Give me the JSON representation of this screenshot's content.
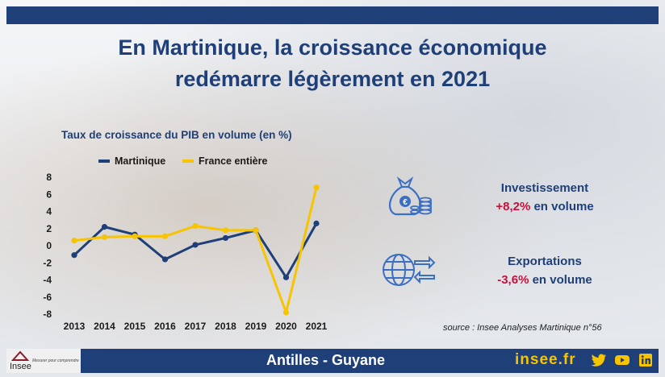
{
  "title_line1": "En Martinique, la croissance économique",
  "title_line2": "redémarre légèrement en 2021",
  "colors": {
    "navy": "#1f3f78",
    "yellow": "#f6c400",
    "red": "#c8103d"
  },
  "chart_data": {
    "type": "line",
    "title": "Taux de croissance du PIB en volume (en %)",
    "x": [
      "2013",
      "2014",
      "2015",
      "2016",
      "2017",
      "2018",
      "2019",
      "2020",
      "2021"
    ],
    "series": [
      {
        "name": "Martinique",
        "color": "#1f3f78",
        "values": [
          -1.1,
          2.2,
          1.3,
          -1.6,
          0.1,
          0.9,
          1.8,
          -3.7,
          2.6
        ]
      },
      {
        "name": "France entière",
        "color": "#f6c400",
        "values": [
          0.6,
          1.0,
          1.1,
          1.1,
          2.3,
          1.8,
          1.8,
          -7.8,
          6.8
        ]
      }
    ],
    "yticks": [
      "8",
      "6",
      "4",
      "2",
      "0",
      "-2",
      "-4",
      "-6",
      "-8"
    ],
    "ylim": [
      -8,
      8
    ],
    "grid": false,
    "legend": "top"
  },
  "kpis": {
    "investissement": {
      "label": "Investissement",
      "value": "+8,2%",
      "suffix": "en volume"
    },
    "exportations": {
      "label": "Exportations",
      "value": "-3,6%",
      "suffix": "en volume"
    }
  },
  "icons": {
    "invest": "money-bag-icon",
    "export": "globe-arrows-icon"
  },
  "source": "source : Insee Analyses Martinique n°56",
  "footer": {
    "region": "Antilles - Guyane",
    "site": "insee.fr",
    "logo": "Insee",
    "tagline": "Mesurer pour comprendre"
  }
}
